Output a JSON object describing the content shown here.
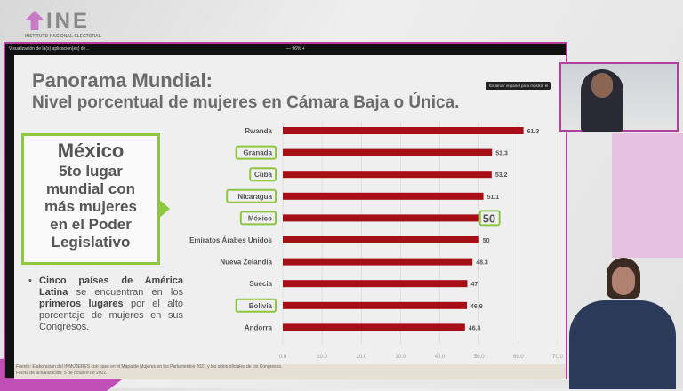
{
  "logo": {
    "name": "INE",
    "subtitle": "INSTITUTO NACIONAL ELECTORAL"
  },
  "window": {
    "title": "Visualización de la(s) aplicación(es) de...",
    "zoom": "— 96% +",
    "tooltip": "Expandir el panel para mostrar el"
  },
  "slide": {
    "title_line1": "Panorama Mundial:",
    "title_line2": "Nivel porcentual de mujeres en Cámara Baja o Única.",
    "callout": {
      "line1": "México",
      "line2": "5to lugar",
      "line3": "mundial con",
      "line4": "más mujeres",
      "line5": "en el Poder",
      "line6": "Legislativo"
    },
    "bullet": {
      "bold1": "Cinco países de América Latina",
      "text1": " se encuentran en los ",
      "bold2": "primeros lugares",
      "text2": " por el alto porcentaje de mujeres en sus Congresos."
    },
    "source": "Fuente: Elaboración del INMUJERES con base en el Mapa de Mujeres en los Parlamentos 2021 y los sitios oficiales de los Congresos.",
    "updated": "Fecha de actualización: 5 de octubre de 2022."
  },
  "chart_data": {
    "type": "bar",
    "orientation": "horizontal",
    "categories": [
      "Rwanda",
      "Granada",
      "Cuba",
      "Nicaragua",
      "México",
      "Emiratos Árabes Unidos",
      "Nueva Zelandia",
      "Suecia",
      "Bolivia",
      "Andorra"
    ],
    "values": [
      61.3,
      53.3,
      53.2,
      51.1,
      50,
      50,
      48.3,
      47,
      46.9,
      46.4
    ],
    "value_labels": [
      "61.3",
      "53.3",
      "53.2",
      "51.1",
      "50",
      "50",
      "48.3",
      "47",
      "46.9",
      "46.4"
    ],
    "highlighted": [
      "Granada",
      "Cuba",
      "Nicaragua",
      "México",
      "Bolivia"
    ],
    "xlim": [
      0,
      70
    ],
    "xticks": [
      "0.0",
      "10.0",
      "20.0",
      "30.0",
      "40.0",
      "50.0",
      "60.0",
      "70.0"
    ],
    "bar_color": "#a50f15",
    "highlight_color": "#8dc63f",
    "grid": true
  }
}
